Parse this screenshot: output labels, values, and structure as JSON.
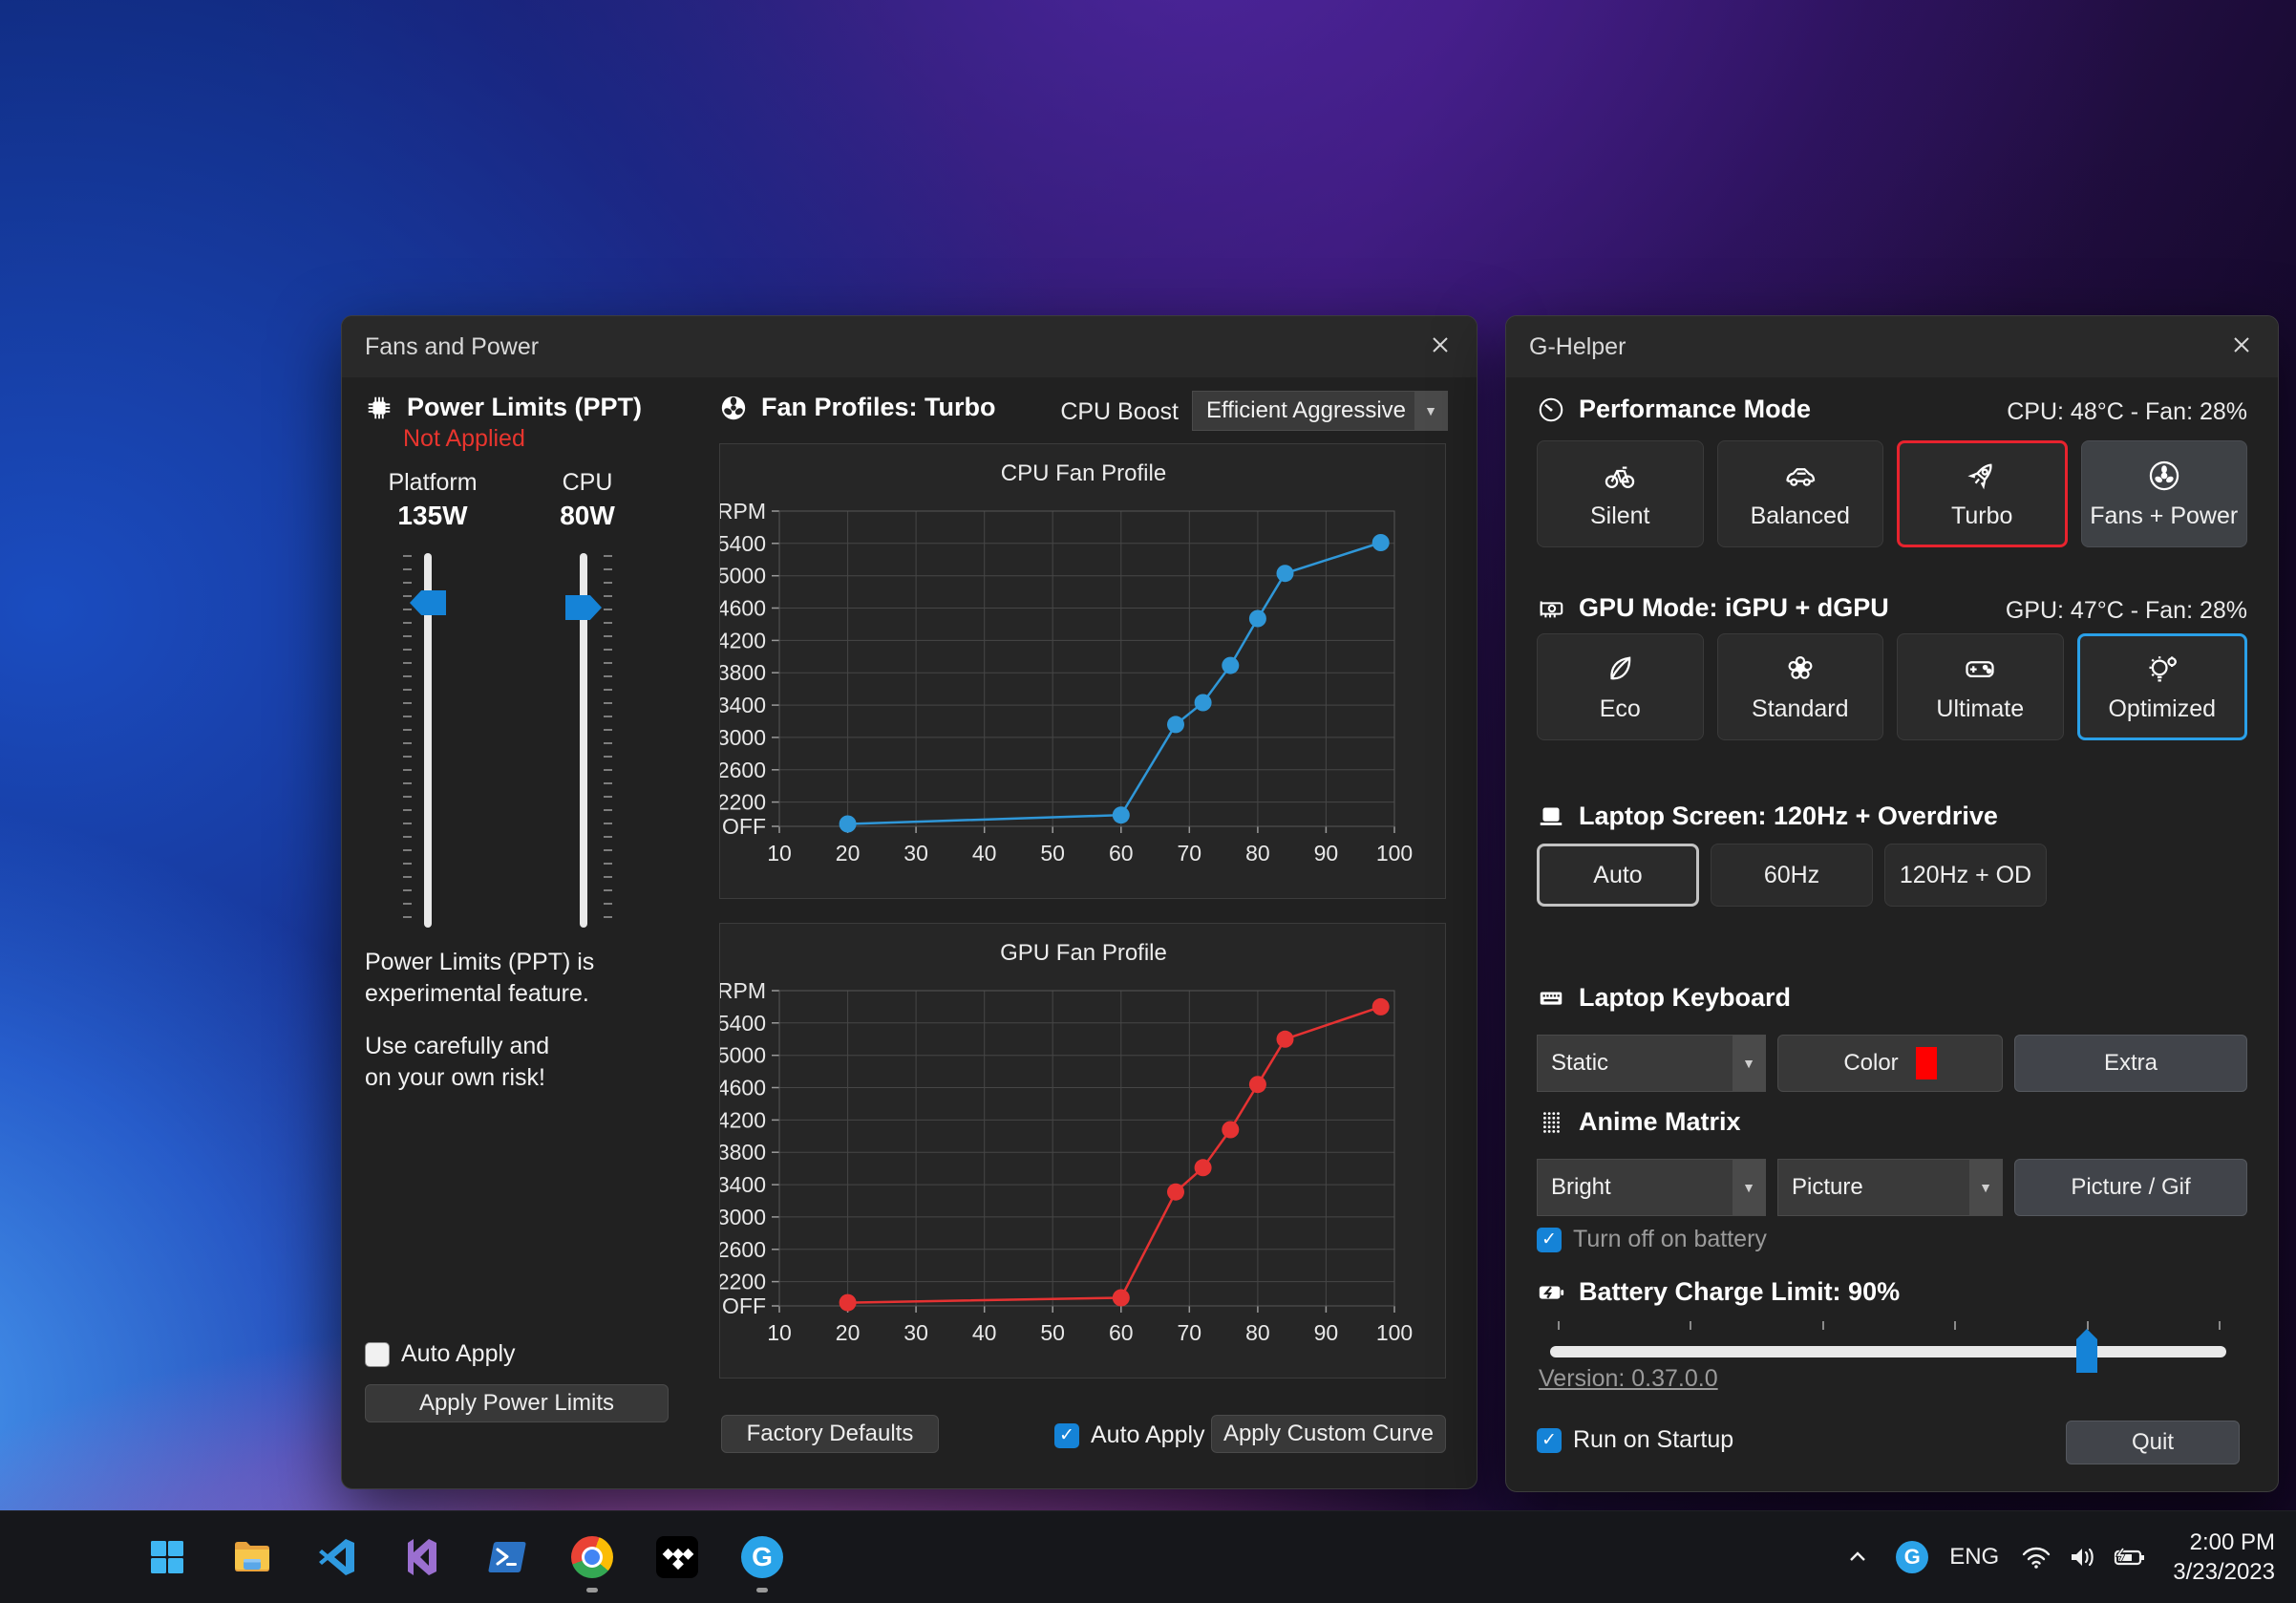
{
  "fans_window": {
    "title": "Fans and Power",
    "power_limits": {
      "header": "Power Limits (PPT)",
      "status": "Not Applied",
      "status_color": "#e8352e",
      "platform_label": "Platform",
      "platform_value": "135W",
      "cpu_label": "CPU",
      "cpu_value": "80W",
      "note_line1": "Power Limits (PPT) is",
      "note_line2": "experimental feature.",
      "note_line3": "Use carefully and",
      "note_line4": "on your own risk!",
      "auto_apply_label": "Auto Apply",
      "auto_apply_checked": false,
      "apply_button": "Apply Power Limits"
    },
    "fan_profiles": {
      "header": "Fan Profiles: Turbo",
      "cpu_boost_label": "CPU Boost",
      "cpu_boost_value": "Efficient Aggressive",
      "factory_defaults_button": "Factory Defaults",
      "auto_apply_label": "Auto Apply",
      "auto_apply_checked": true,
      "apply_custom_curve_button": "Apply Custom Curve"
    }
  },
  "chart_data": [
    {
      "type": "line",
      "title": "CPU Fan Profile",
      "y_axis_label": "RPM",
      "color": "#2f97d8",
      "x_range": [
        10,
        100
      ],
      "y_range": [
        1900,
        5800
      ],
      "x_ticks": [
        10,
        20,
        30,
        40,
        50,
        60,
        70,
        80,
        90,
        100
      ],
      "y_ticks": [
        {
          "label": "OFF",
          "value": 1900
        },
        {
          "label": "2200",
          "value": 2200
        },
        {
          "label": "2600",
          "value": 2600
        },
        {
          "label": "3000",
          "value": 3000
        },
        {
          "label": "3400",
          "value": 3400
        },
        {
          "label": "3800",
          "value": 3800
        },
        {
          "label": "4200",
          "value": 4200
        },
        {
          "label": "4600",
          "value": 4600
        },
        {
          "label": "5000",
          "value": 5000
        },
        {
          "label": "5400",
          "value": 5400
        }
      ],
      "points": [
        [
          20,
          1930
        ],
        [
          60,
          2040
        ],
        [
          68,
          3160
        ],
        [
          72,
          3430
        ],
        [
          76,
          3890
        ],
        [
          80,
          4470
        ],
        [
          84,
          5030
        ],
        [
          98,
          5410
        ]
      ],
      "grid": true,
      "legend": "none"
    },
    {
      "type": "line",
      "title": "GPU Fan Profile",
      "y_axis_label": "RPM",
      "color": "#e53232",
      "x_range": [
        10,
        100
      ],
      "y_range": [
        1900,
        5800
      ],
      "x_ticks": [
        10,
        20,
        30,
        40,
        50,
        60,
        70,
        80,
        90,
        100
      ],
      "y_ticks": [
        {
          "label": "OFF",
          "value": 1900
        },
        {
          "label": "2200",
          "value": 2200
        },
        {
          "label": "2600",
          "value": 2600
        },
        {
          "label": "3000",
          "value": 3000
        },
        {
          "label": "3400",
          "value": 3400
        },
        {
          "label": "3800",
          "value": 3800
        },
        {
          "label": "4200",
          "value": 4200
        },
        {
          "label": "4600",
          "value": 4600
        },
        {
          "label": "5000",
          "value": 5000
        },
        {
          "label": "5400",
          "value": 5400
        }
      ],
      "points": [
        [
          20,
          1940
        ],
        [
          60,
          2000
        ],
        [
          68,
          3310
        ],
        [
          72,
          3610
        ],
        [
          76,
          4080
        ],
        [
          80,
          4640
        ],
        [
          84,
          5200
        ],
        [
          98,
          5600
        ]
      ],
      "grid": true,
      "legend": "none"
    }
  ],
  "ghelper_window": {
    "title": "G-Helper",
    "performance": {
      "header": "Performance Mode",
      "status": "CPU: 48°C -  Fan: 28%",
      "modes": [
        {
          "label": "Silent",
          "icon": "bicycle",
          "style": "normal"
        },
        {
          "label": "Balanced",
          "icon": "car",
          "style": "normal"
        },
        {
          "label": "Turbo",
          "icon": "rocket",
          "style": "selected-red"
        },
        {
          "label": "Fans + Power",
          "icon": "fan",
          "style": "lighter"
        }
      ]
    },
    "gpu_mode": {
      "header": "GPU Mode: iGPU + dGPU",
      "status": "GPU: 47°C -  Fan: 28%",
      "modes": [
        {
          "label": "Eco",
          "icon": "leaf",
          "style": "normal"
        },
        {
          "label": "Standard",
          "icon": "flower",
          "style": "normal"
        },
        {
          "label": "Ultimate",
          "icon": "gamepad",
          "style": "normal"
        },
        {
          "label": "Optimized",
          "icon": "bulb-gear",
          "style": "selected-blue"
        }
      ]
    },
    "laptop_screen": {
      "header": "Laptop Screen: 120Hz + Overdrive",
      "options": [
        {
          "label": "Auto",
          "style": "selected-gray"
        },
        {
          "label": "60Hz",
          "style": "normal"
        },
        {
          "label": "120Hz + OD",
          "style": "normal"
        }
      ]
    },
    "keyboard": {
      "header": "Laptop Keyboard",
      "backlight_mode": "Static",
      "color_button": "Color",
      "color_swatch": "#ff0000",
      "extra_button": "Extra"
    },
    "anime_matrix": {
      "header": "Anime Matrix",
      "brightness": "Bright",
      "running_mode": "Picture",
      "picture_button": "Picture / Gif",
      "battery_checkbox_label": "Turn off on battery",
      "battery_checkbox_checked": true
    },
    "battery": {
      "header": "Battery Charge Limit: 90%",
      "percent": 90
    },
    "version_link": "Version: 0.37.0.0",
    "startup_checkbox_label": "Run on Startup",
    "startup_checkbox_checked": true,
    "quit_button": "Quit"
  },
  "taskbar": {
    "apps": [
      {
        "icon": "windows-start",
        "running": false
      },
      {
        "icon": "file-explorer",
        "running": false
      },
      {
        "icon": "vscode",
        "running": false
      },
      {
        "icon": "visual-studio",
        "running": false
      },
      {
        "icon": "powershell",
        "running": false
      },
      {
        "icon": "chrome",
        "running": true
      },
      {
        "icon": "tidal",
        "running": false
      },
      {
        "icon": "g-helper",
        "running": true
      }
    ],
    "tray": {
      "language": "ENG",
      "time": "2:00 PM",
      "date": "3/23/2023"
    }
  },
  "colors": {
    "accent_blue": "#1583d7",
    "selection_red": "#e8232e",
    "selection_blue": "#2aa0e8",
    "status_red": "#e8352e",
    "chart_cpu": "#2f97d8",
    "chart_gpu": "#e53232"
  }
}
